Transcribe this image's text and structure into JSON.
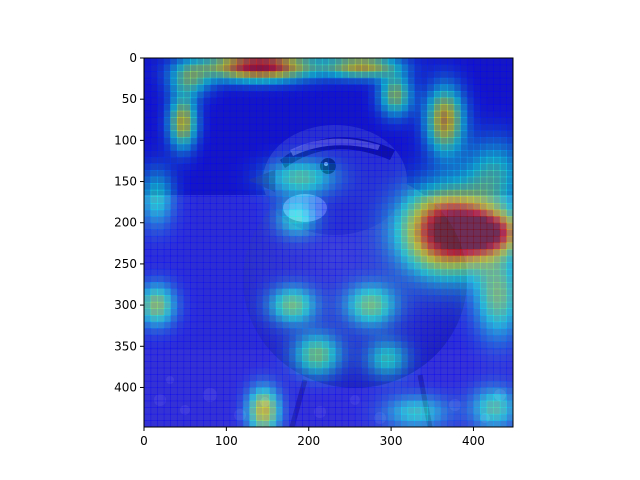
{
  "chart_data": {
    "type": "heatmap",
    "title": "",
    "xlabel": "",
    "ylabel": "",
    "xlim": [
      0,
      448
    ],
    "ylim": [
      448,
      0
    ],
    "xticks": [
      0,
      100,
      200,
      300,
      400
    ],
    "yticks": [
      0,
      50,
      100,
      150,
      200,
      250,
      300,
      350,
      400
    ],
    "background_image": "photo of a white-throated sparrow standing on seeds and pebbles",
    "colormap": "jet",
    "overlay_alpha": 0.5,
    "hotspots": [
      {
        "x": 140,
        "y": 10,
        "sx": 45,
        "sy": 12,
        "intensity": 0.85
      },
      {
        "x": 265,
        "y": 10,
        "sx": 30,
        "sy": 10,
        "intensity": 0.55
      },
      {
        "x": 55,
        "y": 25,
        "sx": 18,
        "sy": 15,
        "intensity": 0.35
      },
      {
        "x": 305,
        "y": 45,
        "sx": 14,
        "sy": 18,
        "intensity": 0.45
      },
      {
        "x": 47,
        "y": 78,
        "sx": 12,
        "sy": 22,
        "intensity": 0.55
      },
      {
        "x": 365,
        "y": 75,
        "sx": 16,
        "sy": 28,
        "intensity": 0.6
      },
      {
        "x": 190,
        "y": 145,
        "sx": 30,
        "sy": 16,
        "intensity": 0.35
      },
      {
        "x": 425,
        "y": 140,
        "sx": 26,
        "sy": 30,
        "intensity": 0.3
      },
      {
        "x": 15,
        "y": 170,
        "sx": 15,
        "sy": 25,
        "intensity": 0.3
      },
      {
        "x": 368,
        "y": 210,
        "sx": 38,
        "sy": 35,
        "intensity": 0.95
      },
      {
        "x": 420,
        "y": 212,
        "sx": 30,
        "sy": 18,
        "intensity": 0.65
      },
      {
        "x": 185,
        "y": 195,
        "sx": 18,
        "sy": 16,
        "intensity": 0.3
      },
      {
        "x": 430,
        "y": 290,
        "sx": 20,
        "sy": 35,
        "intensity": 0.4
      },
      {
        "x": 15,
        "y": 300,
        "sx": 16,
        "sy": 18,
        "intensity": 0.45
      },
      {
        "x": 180,
        "y": 300,
        "sx": 20,
        "sy": 16,
        "intensity": 0.4
      },
      {
        "x": 275,
        "y": 300,
        "sx": 22,
        "sy": 18,
        "intensity": 0.4
      },
      {
        "x": 210,
        "y": 360,
        "sx": 20,
        "sy": 18,
        "intensity": 0.4
      },
      {
        "x": 295,
        "y": 365,
        "sx": 18,
        "sy": 16,
        "intensity": 0.3
      },
      {
        "x": 145,
        "y": 428,
        "sx": 14,
        "sy": 20,
        "intensity": 0.55
      },
      {
        "x": 330,
        "y": 430,
        "sx": 28,
        "sy": 15,
        "intensity": 0.3
      },
      {
        "x": 425,
        "y": 425,
        "sx": 20,
        "sy": 18,
        "intensity": 0.35
      }
    ]
  }
}
